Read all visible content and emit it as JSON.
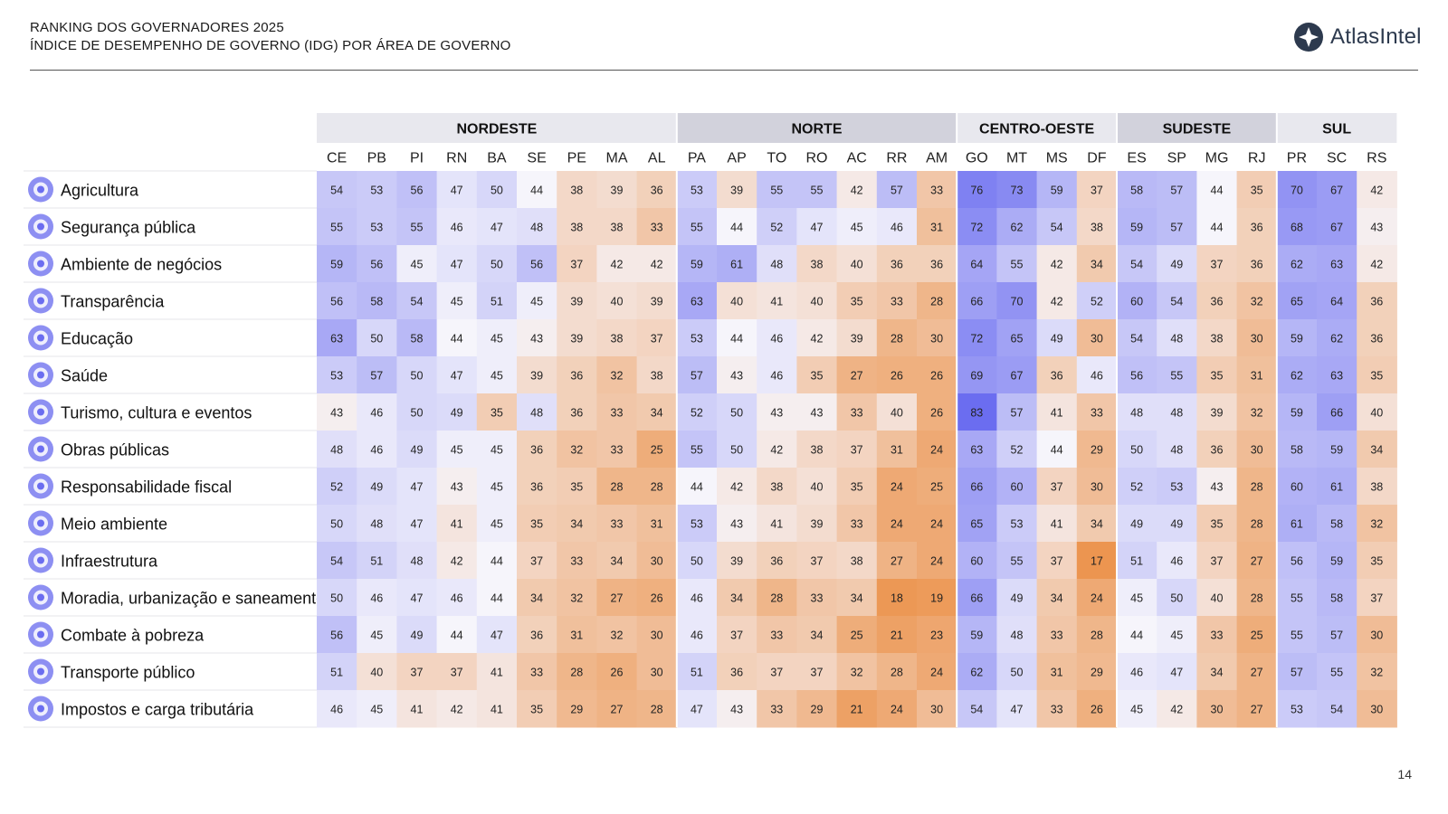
{
  "header": {
    "title_line1": "RANKING DOS GOVERNADORES 2025",
    "title_line2": "ÍNDICE DE DESEMPENHO DE GOVERNO (IDG) POR ÁREA DE GOVERNO",
    "brand": "AtlasIntel",
    "page_number": "14"
  },
  "colors": {
    "high": "#6b6df0",
    "mid": "#f6f5fb",
    "low": "#ec9550",
    "region_header_light": "#e8e8ee",
    "region_header_dark": "#d2d2dc",
    "logo": "#2d3a4e"
  },
  "chart_data": {
    "type": "heatmap",
    "title": "ÍNDICE DE DESEMPENHO DE GOVERNO (IDG) POR ÁREA DE GOVERNO",
    "regions": [
      {
        "name": "NORDESTE",
        "states": [
          "CE",
          "PB",
          "PI",
          "RN",
          "BA",
          "SE",
          "PE",
          "MA",
          "AL"
        ]
      },
      {
        "name": "NORTE",
        "states": [
          "PA",
          "AP",
          "TO",
          "RO",
          "AC",
          "RR",
          "AM"
        ]
      },
      {
        "name": "CENTRO-OESTE",
        "states": [
          "GO",
          "MT",
          "MS",
          "DF"
        ]
      },
      {
        "name": "SUDESTE",
        "states": [
          "ES",
          "SP",
          "MG",
          "RJ"
        ]
      },
      {
        "name": "SUL",
        "states": [
          "PR",
          "SC",
          "RS"
        ]
      }
    ],
    "columns": [
      "CE",
      "PB",
      "PI",
      "RN",
      "BA",
      "SE",
      "PE",
      "MA",
      "AL",
      "PA",
      "AP",
      "TO",
      "RO",
      "AC",
      "RR",
      "AM",
      "GO",
      "MT",
      "MS",
      "DF",
      "ES",
      "SP",
      "MG",
      "RJ",
      "PR",
      "SC",
      "RS"
    ],
    "rows": [
      {
        "label": "Agricultura",
        "icon": "agriculture-icon",
        "values": [
          54,
          53,
          56,
          47,
          50,
          44,
          38,
          39,
          36,
          53,
          39,
          55,
          55,
          42,
          57,
          33,
          76,
          73,
          59,
          37,
          58,
          57,
          44,
          35,
          70,
          67,
          42
        ]
      },
      {
        "label": "Segurança pública",
        "icon": "police-badge-icon",
        "values": [
          55,
          53,
          55,
          46,
          47,
          48,
          38,
          38,
          33,
          55,
          44,
          52,
          47,
          45,
          46,
          31,
          72,
          62,
          54,
          38,
          59,
          57,
          44,
          36,
          68,
          67,
          43
        ]
      },
      {
        "label": "Ambiente de negócios",
        "icon": "handshake-icon",
        "values": [
          59,
          56,
          45,
          47,
          50,
          56,
          37,
          42,
          42,
          59,
          61,
          48,
          38,
          40,
          36,
          36,
          64,
          55,
          42,
          34,
          54,
          49,
          37,
          36,
          62,
          63,
          42
        ]
      },
      {
        "label": "Transparência",
        "icon": "magnifier-icon",
        "values": [
          56,
          58,
          54,
          45,
          51,
          45,
          39,
          40,
          39,
          63,
          40,
          41,
          40,
          35,
          33,
          28,
          66,
          70,
          42,
          52,
          60,
          54,
          36,
          32,
          65,
          64,
          36
        ]
      },
      {
        "label": "Educação",
        "icon": "book-icon",
        "values": [
          63,
          50,
          58,
          44,
          45,
          43,
          39,
          38,
          37,
          53,
          44,
          46,
          42,
          39,
          28,
          30,
          72,
          65,
          49,
          30,
          54,
          48,
          38,
          30,
          59,
          62,
          36
        ]
      },
      {
        "label": "Saúde",
        "icon": "stethoscope-icon",
        "values": [
          53,
          57,
          50,
          47,
          45,
          39,
          36,
          32,
          38,
          57,
          43,
          46,
          35,
          27,
          26,
          26,
          69,
          67,
          36,
          46,
          56,
          55,
          35,
          31,
          62,
          63,
          35
        ]
      },
      {
        "label": "Turismo, cultura e eventos",
        "icon": "luggage-icon",
        "values": [
          43,
          46,
          50,
          49,
          35,
          48,
          36,
          33,
          34,
          52,
          50,
          43,
          43,
          33,
          40,
          26,
          83,
          57,
          41,
          33,
          48,
          48,
          39,
          32,
          59,
          66,
          40
        ]
      },
      {
        "label": "Obras públicas",
        "icon": "excavator-icon",
        "values": [
          48,
          46,
          49,
          45,
          45,
          36,
          32,
          33,
          25,
          55,
          50,
          42,
          38,
          37,
          31,
          24,
          63,
          52,
          44,
          29,
          50,
          48,
          36,
          30,
          58,
          59,
          34
        ]
      },
      {
        "label": "Responsabilidade fiscal",
        "icon": "bar-chart-icon",
        "values": [
          52,
          49,
          47,
          43,
          45,
          36,
          35,
          28,
          28,
          44,
          42,
          38,
          40,
          35,
          24,
          25,
          66,
          60,
          37,
          30,
          52,
          53,
          43,
          28,
          60,
          61,
          38
        ]
      },
      {
        "label": "Meio ambiente",
        "icon": "tree-icon",
        "values": [
          50,
          48,
          47,
          41,
          45,
          35,
          34,
          33,
          31,
          53,
          43,
          41,
          39,
          33,
          24,
          24,
          65,
          53,
          41,
          34,
          49,
          49,
          35,
          28,
          61,
          58,
          32
        ]
      },
      {
        "label": "Infraestrutura",
        "icon": "road-icon",
        "values": [
          54,
          51,
          48,
          42,
          44,
          37,
          33,
          34,
          30,
          50,
          39,
          36,
          37,
          38,
          27,
          24,
          60,
          55,
          37,
          17,
          51,
          46,
          37,
          27,
          56,
          59,
          35
        ]
      },
      {
        "label": "Moradia, urbanização e saneamento",
        "icon": "house-icon",
        "values": [
          50,
          46,
          47,
          46,
          44,
          34,
          32,
          27,
          26,
          46,
          34,
          28,
          33,
          34,
          18,
          19,
          66,
          49,
          34,
          24,
          45,
          50,
          40,
          28,
          55,
          58,
          37
        ]
      },
      {
        "label": "Combate à pobreza",
        "icon": "hand-heart-icon",
        "values": [
          56,
          45,
          49,
          44,
          47,
          36,
          31,
          32,
          30,
          46,
          37,
          33,
          34,
          25,
          21,
          23,
          59,
          48,
          33,
          28,
          44,
          45,
          33,
          25,
          55,
          57,
          30
        ]
      },
      {
        "label": "Transporte público",
        "icon": "bus-icon",
        "values": [
          51,
          40,
          37,
          37,
          41,
          33,
          28,
          26,
          30,
          51,
          36,
          37,
          37,
          32,
          28,
          24,
          62,
          50,
          31,
          29,
          46,
          47,
          34,
          27,
          57,
          55,
          32
        ]
      },
      {
        "label": "Impostos e carga tributária",
        "icon": "tax-document-icon",
        "values": [
          46,
          45,
          41,
          42,
          41,
          35,
          29,
          27,
          28,
          47,
          43,
          33,
          29,
          21,
          24,
          30,
          54,
          47,
          33,
          26,
          45,
          42,
          30,
          27,
          53,
          54,
          30
        ]
      }
    ],
    "color_scale": {
      "min": 17,
      "mid": 44,
      "max": 83
    }
  }
}
